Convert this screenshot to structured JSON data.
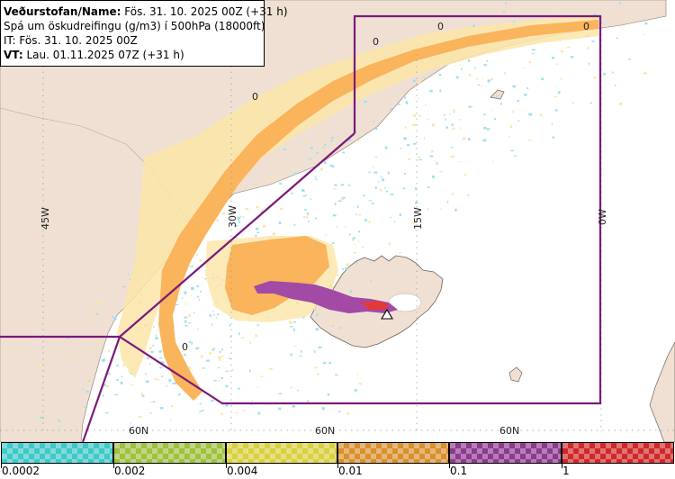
{
  "header": {
    "line1_bold": "Veðurstofan/Name:",
    "line1_rest": " Fös. 31. 10. 2025 00Z (+31 h)",
    "line2": "Spá um öskudreifingu (g/m3) í 500hPa (18000ft)",
    "line3": "IT: Fös. 31. 10. 2025 00Z",
    "line4_bold": "VT:",
    "line4_rest": " Lau. 01.11.2025 07Z (+31 h)"
  },
  "grid": {
    "lon_labels": [
      "45W",
      "30W",
      "15W",
      "0W"
    ],
    "lat_labels": [
      "60N",
      "60N",
      "60N"
    ]
  },
  "contour_labels": [
    "0",
    "0",
    "0",
    "0",
    "0"
  ],
  "legend": {
    "labels": [
      "0.0002",
      "0.002",
      "0.004",
      "0.01",
      "0.1",
      "1"
    ],
    "colors": [
      "#3ec8c8",
      "#a0c040",
      "#d8d040",
      "#d89030",
      "#8e3a8e",
      "#d02828"
    ]
  },
  "colors": {
    "land": "#efe0d3",
    "sea": "#ffffff",
    "boundary": "#7a1a7a",
    "ash_light": "#fde5a8",
    "ash_orange": "#f9b45c",
    "ash_purple": "#a24aa6",
    "ash_red": "#e23a3a",
    "speckle_cyan": "#9fe0ea"
  }
}
